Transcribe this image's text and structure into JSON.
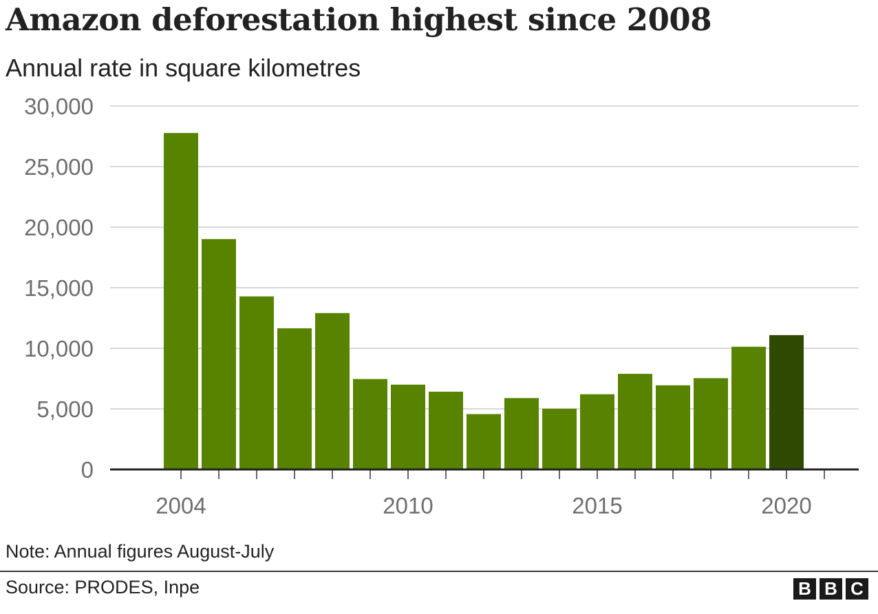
{
  "chart_data": {
    "type": "bar",
    "title": "Amazon deforestation highest since 2008",
    "subtitle": "Annual rate in square kilometres",
    "categories": [
      2004,
      2005,
      2006,
      2007,
      2008,
      2009,
      2010,
      2011,
      2012,
      2013,
      2014,
      2015,
      2016,
      2017,
      2018,
      2019,
      2020
    ],
    "values": [
      27772,
      19014,
      14286,
      11651,
      12911,
      7464,
      7000,
      6418,
      4571,
      5891,
      5012,
      6207,
      7893,
      6947,
      7536,
      10129,
      11088
    ],
    "ylim": [
      0,
      30000
    ],
    "yticks": [
      0,
      5000,
      10000,
      15000,
      20000,
      25000,
      30000
    ],
    "ytick_labels": [
      "0",
      "5,000",
      "10,000",
      "15,000",
      "20,000",
      "25,000",
      "30,000"
    ],
    "xtick_labels": [
      {
        "year": 2004,
        "label": "2004"
      },
      {
        "year": 2010,
        "label": "2010"
      },
      {
        "year": 2015,
        "label": "2015"
      },
      {
        "year": 2020,
        "label": "2020"
      }
    ],
    "grid": true,
    "colors": {
      "bar": "#588300",
      "highlight": "#2f4a00",
      "grid": "#cccccc",
      "axis": "#222222"
    },
    "highlight_category": 2020
  },
  "note": "Note: Annual figures August-July",
  "source": "Source: PRODES, Inpe",
  "logo": [
    "B",
    "B",
    "C"
  ]
}
